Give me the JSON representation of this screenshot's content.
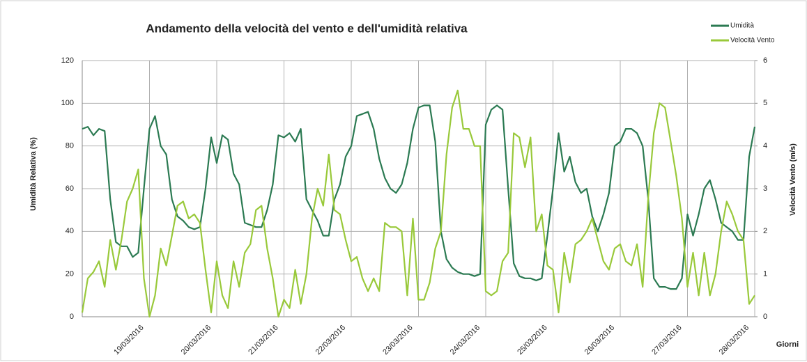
{
  "chart_data": {
    "type": "line",
    "title": "Andamento della velocità del vento e dell'umidità relativa",
    "ylabel": "Umidità Relativa (%)",
    "y2label": "Velocità Vento (m/s)",
    "xlabel": "Giorni",
    "legend": "top-right",
    "grid": true,
    "ylim": [
      0,
      120
    ],
    "yticks": [
      0,
      20,
      40,
      60,
      80,
      100,
      120
    ],
    "y2lim": [
      0,
      6
    ],
    "y2ticks": [
      0,
      1,
      2,
      3,
      4,
      5,
      6
    ],
    "categories": [
      null,
      null,
      null,
      null,
      null,
      null,
      null,
      null,
      null,
      null,
      null,
      null,
      "19/03/2016",
      null,
      null,
      null,
      null,
      null,
      null,
      null,
      null,
      null,
      null,
      null,
      "20/03/2016",
      null,
      null,
      null,
      null,
      null,
      null,
      null,
      null,
      null,
      null,
      null,
      "21/03/2016",
      null,
      null,
      null,
      null,
      null,
      null,
      null,
      null,
      null,
      null,
      null,
      "22/03/2016",
      null,
      null,
      null,
      null,
      null,
      null,
      null,
      null,
      null,
      null,
      null,
      "23/03/2016",
      null,
      null,
      null,
      null,
      null,
      null,
      null,
      null,
      null,
      null,
      null,
      "24/03/2016",
      null,
      null,
      null,
      null,
      null,
      null,
      null,
      null,
      null,
      null,
      null,
      "25/03/2016",
      null,
      null,
      null,
      null,
      null,
      null,
      null,
      null,
      null,
      null,
      null,
      "26/03/2016",
      null,
      null,
      null,
      null,
      null,
      null,
      null,
      null,
      null,
      null,
      null,
      "27/03/2016",
      null,
      null,
      null,
      null,
      null,
      null,
      null,
      null,
      null,
      null,
      null,
      "28/03/2016"
    ],
    "series": [
      {
        "name": "Umidità",
        "color": "#2b7a52",
        "axis": "y",
        "values": [
          88,
          89,
          85,
          88,
          87,
          55,
          35,
          33,
          33,
          28,
          30,
          60,
          88,
          94,
          80,
          76,
          55,
          47,
          45,
          42,
          41,
          42,
          60,
          84,
          72,
          85,
          83,
          67,
          62,
          44,
          43,
          42,
          42,
          50,
          62,
          85,
          84,
          86,
          82,
          88,
          55,
          50,
          45,
          38,
          38,
          55,
          62,
          75,
          80,
          94,
          95,
          96,
          88,
          74,
          65,
          60,
          58,
          62,
          72,
          88,
          98,
          99,
          99,
          82,
          40,
          27,
          23,
          21,
          20,
          20,
          19,
          20,
          90,
          97,
          99,
          97,
          60,
          25,
          19,
          18,
          18,
          17,
          18,
          38,
          60,
          86,
          68,
          75,
          63,
          58,
          60,
          47,
          40,
          48,
          58,
          80,
          82,
          88,
          88,
          86,
          80,
          55,
          18,
          14,
          14,
          13,
          13,
          18,
          48,
          38,
          48,
          60,
          64,
          55,
          44,
          42,
          40,
          36,
          36,
          75,
          89
        ]
      },
      {
        "name": "Velocità Vento",
        "color": "#99c93a",
        "axis": "y2",
        "values": [
          0.1,
          0.9,
          1.05,
          1.3,
          0.7,
          1.8,
          1.1,
          1.8,
          2.7,
          3.0,
          3.45,
          0.9,
          0.0,
          0.5,
          1.6,
          1.2,
          1.9,
          2.6,
          2.7,
          2.3,
          2.4,
          2.2,
          1.1,
          0.1,
          1.3,
          0.5,
          0.2,
          1.3,
          0.7,
          1.5,
          1.7,
          2.5,
          2.6,
          1.6,
          0.9,
          0.0,
          0.4,
          0.2,
          1.1,
          0.3,
          1.0,
          2.3,
          3.0,
          2.6,
          3.8,
          2.5,
          2.4,
          1.8,
          1.3,
          1.4,
          0.9,
          0.6,
          0.9,
          0.6,
          2.2,
          2.1,
          2.1,
          2.0,
          0.5,
          2.3,
          0.4,
          0.4,
          0.8,
          1.6,
          2.0,
          3.8,
          4.9,
          5.3,
          4.4,
          4.4,
          4.0,
          4.0,
          0.6,
          0.5,
          0.6,
          1.3,
          1.5,
          4.3,
          4.2,
          3.5,
          4.2,
          2.0,
          2.4,
          1.2,
          1.1,
          0.1,
          1.5,
          0.8,
          1.7,
          1.8,
          2.0,
          2.3,
          1.8,
          1.3,
          1.1,
          1.6,
          1.7,
          1.3,
          1.2,
          1.7,
          0.7,
          2.8,
          4.3,
          5.0,
          4.9,
          4.1,
          3.3,
          2.3,
          0.7,
          1.5,
          0.5,
          1.5,
          0.5,
          1.0,
          2.0,
          2.7,
          2.4,
          2.0,
          1.8,
          0.3,
          0.5
        ]
      }
    ]
  }
}
